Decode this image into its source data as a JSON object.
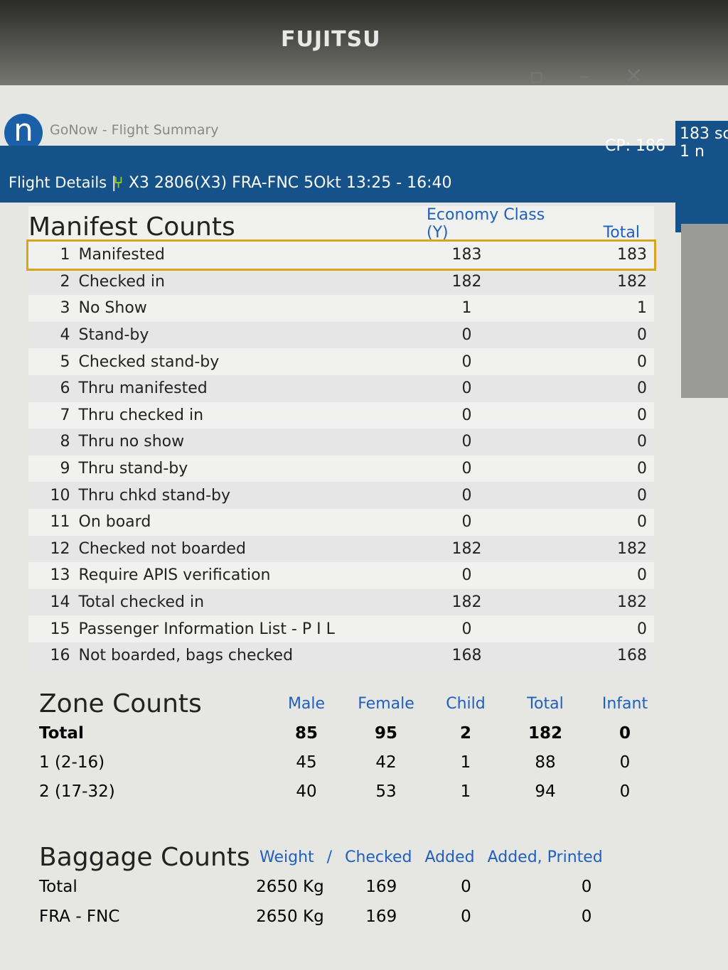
{
  "bezel": {
    "brand": "FUJITSU"
  },
  "window": {
    "title": "GoNow - Flight Summary",
    "logo": "n"
  },
  "flight_bar": {
    "details": "Flight Details |",
    "icon": "seat-icon",
    "flight": "X3 2806(X3)  FRA-FNC  5Okt 13:25 - 16:40",
    "cp": "CP: 186"
  },
  "side_panel": {
    "line1": "183 sc",
    "line2": "1 n"
  },
  "manifest": {
    "title": "Manifest Counts",
    "col_economy": "Economy Class (Y)",
    "col_total": "Total",
    "rows": [
      {
        "n": "1",
        "label": "Manifested",
        "economy": "183",
        "total": "183"
      },
      {
        "n": "2",
        "label": "Checked in",
        "economy": "182",
        "total": "182"
      },
      {
        "n": "3",
        "label": "No Show",
        "economy": "1",
        "total": "1"
      },
      {
        "n": "4",
        "label": "Stand-by",
        "economy": "0",
        "total": "0"
      },
      {
        "n": "5",
        "label": "Checked stand-by",
        "economy": "0",
        "total": "0"
      },
      {
        "n": "6",
        "label": "Thru manifested",
        "economy": "0",
        "total": "0"
      },
      {
        "n": "7",
        "label": "Thru checked in",
        "economy": "0",
        "total": "0"
      },
      {
        "n": "8",
        "label": "Thru no show",
        "economy": "0",
        "total": "0"
      },
      {
        "n": "9",
        "label": "Thru stand-by",
        "economy": "0",
        "total": "0"
      },
      {
        "n": "10",
        "label": "Thru chkd stand-by",
        "economy": "0",
        "total": "0"
      },
      {
        "n": "11",
        "label": "On board",
        "economy": "0",
        "total": "0"
      },
      {
        "n": "12",
        "label": "Checked not boarded",
        "economy": "182",
        "total": "182"
      },
      {
        "n": "13",
        "label": "Require APIS verification",
        "economy": "0",
        "total": "0"
      },
      {
        "n": "14",
        "label": "Total checked in",
        "economy": "182",
        "total": "182"
      },
      {
        "n": "15",
        "label": "Passenger Information List - P I L",
        "economy": "0",
        "total": "0"
      },
      {
        "n": "16",
        "label": "Not boarded, bags checked",
        "economy": "168",
        "total": "168"
      }
    ]
  },
  "zones": {
    "title": "Zone Counts",
    "headers": [
      "Male",
      "Female",
      "Child",
      "Total",
      "Infant"
    ],
    "rows": [
      {
        "label": "Total",
        "values": [
          "85",
          "95",
          "2",
          "182",
          "0"
        ]
      },
      {
        "label": "1 (2-16)",
        "values": [
          "45",
          "42",
          "1",
          "88",
          "0"
        ]
      },
      {
        "label": "2 (17-32)",
        "values": [
          "40",
          "53",
          "1",
          "94",
          "0"
        ]
      }
    ]
  },
  "baggage": {
    "title": "Baggage Counts",
    "headers": [
      "Weight",
      "/",
      "Checked",
      "Added",
      "Added, Printed"
    ],
    "rows": [
      {
        "label": "Total",
        "weight": "2650 Kg",
        "checked": "169",
        "added": "0",
        "printed": "0"
      },
      {
        "label": "FRA - FNC",
        "weight": "2650 Kg",
        "checked": "169",
        "added": "0",
        "printed": "0"
      }
    ]
  },
  "colors": {
    "bar": "#16528a",
    "accent": "#1f5fbf",
    "highlight": "#d9a51c"
  }
}
